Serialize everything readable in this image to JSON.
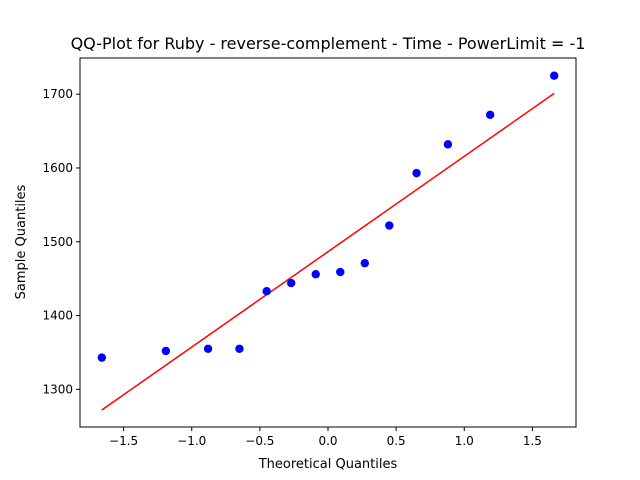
{
  "chart_data": {
    "type": "scatter",
    "title": "QQ-Plot for Ruby - reverse-complement - Time - PowerLimit = -1",
    "xlabel": "Theoretical Quantiles",
    "ylabel": "Sample Quantiles",
    "xlim": [
      -1.82,
      1.82
    ],
    "ylim": [
      1249,
      1749
    ],
    "x_ticks": [
      -1.5,
      -1.0,
      -0.5,
      0.0,
      0.5,
      1.0,
      1.5
    ],
    "x_tick_labels": [
      "−1.5",
      "−1.0",
      "−0.5",
      "0.0",
      "0.5",
      "1.0",
      "1.5"
    ],
    "y_ticks": [
      1300,
      1400,
      1500,
      1600,
      1700
    ],
    "y_tick_labels": [
      "1300",
      "1400",
      "1500",
      "1600",
      "1700"
    ],
    "grid": false,
    "series": [
      {
        "kind": "points",
        "color": "#0000ff",
        "x": [
          -1.66,
          -1.19,
          -0.88,
          -0.65,
          -0.45,
          -0.27,
          -0.09,
          0.09,
          0.27,
          0.45,
          0.65,
          0.88,
          1.19,
          1.66
        ],
        "y": [
          1343,
          1352,
          1355,
          1355,
          1433,
          1444,
          1456,
          1459,
          1471,
          1522,
          1593,
          1632,
          1672,
          1725
        ]
      },
      {
        "kind": "line",
        "color": "#ff0000",
        "x": [
          -1.66,
          1.66
        ],
        "y": [
          1272,
          1701
        ]
      }
    ]
  }
}
